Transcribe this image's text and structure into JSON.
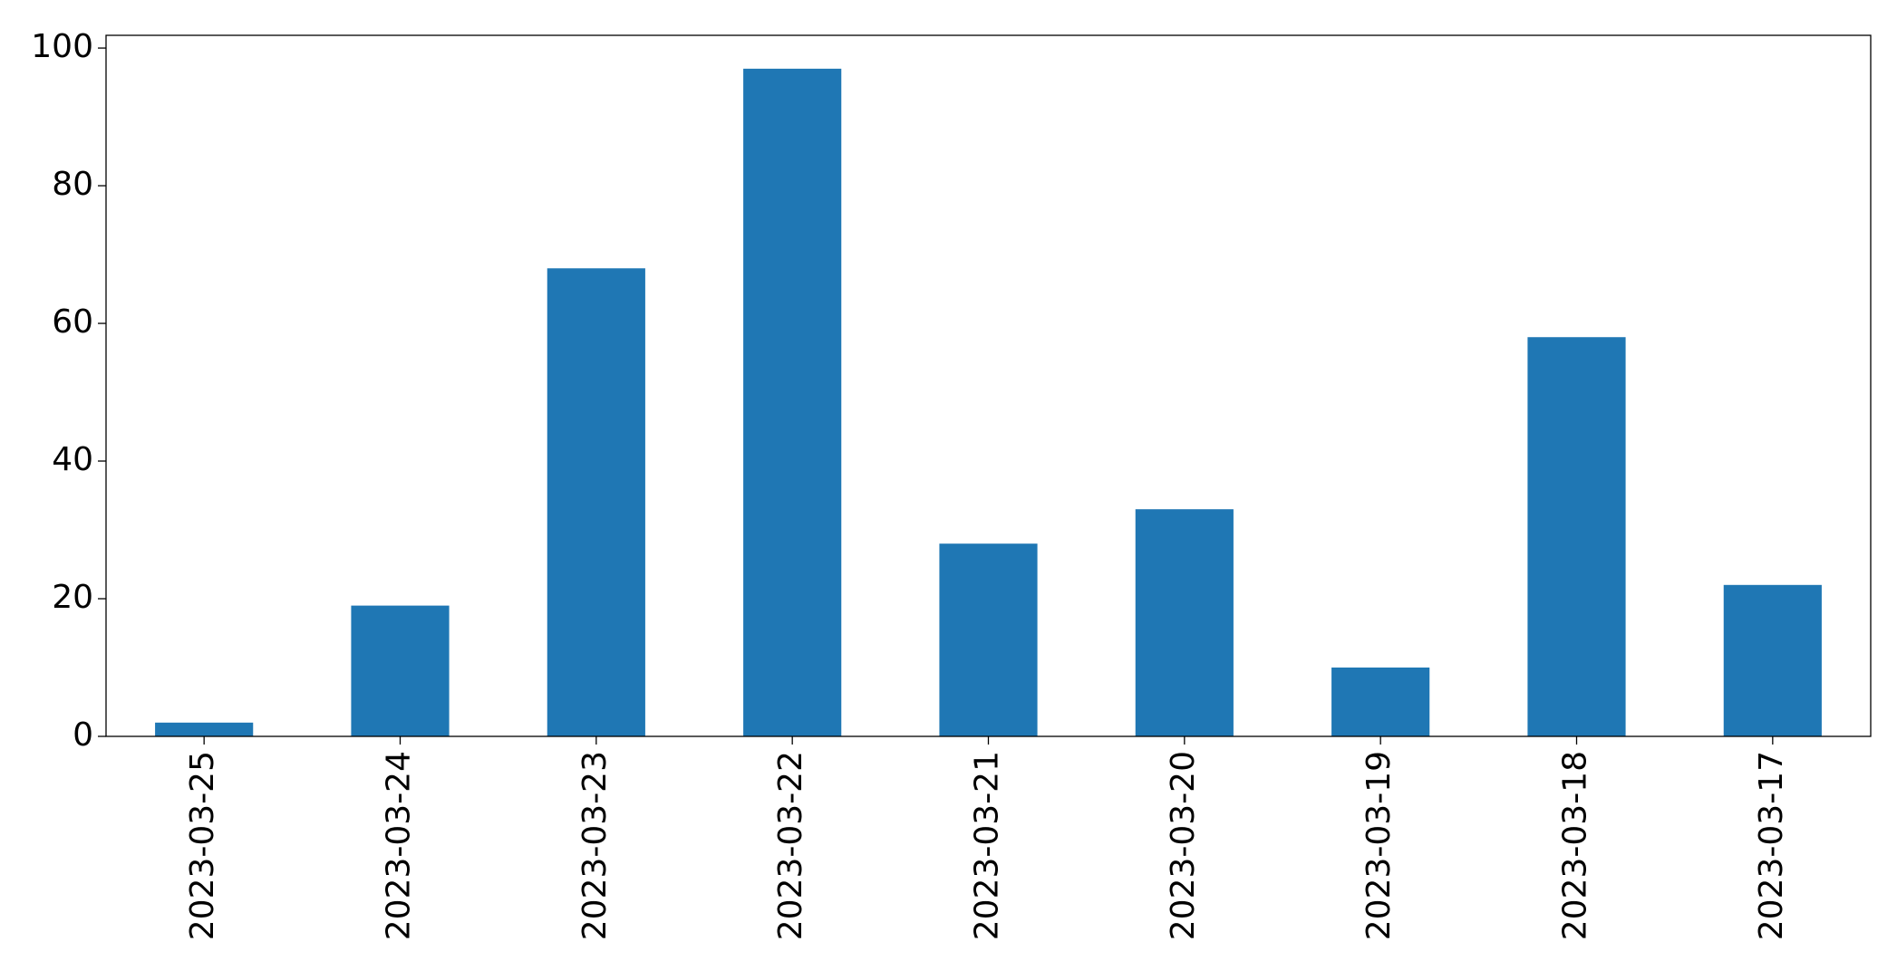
{
  "chart_data": {
    "type": "bar",
    "categories": [
      "2023-03-25",
      "2023-03-24",
      "2023-03-23",
      "2023-03-22",
      "2023-03-21",
      "2023-03-20",
      "2023-03-19",
      "2023-03-18",
      "2023-03-17"
    ],
    "values": [
      2,
      19,
      68,
      97,
      28,
      33,
      10,
      58,
      22
    ],
    "color": "#1f77b4",
    "ylim": [
      0,
      101.85
    ],
    "yticks": [
      0,
      20,
      40,
      60,
      80,
      100
    ],
    "grid": false
  }
}
